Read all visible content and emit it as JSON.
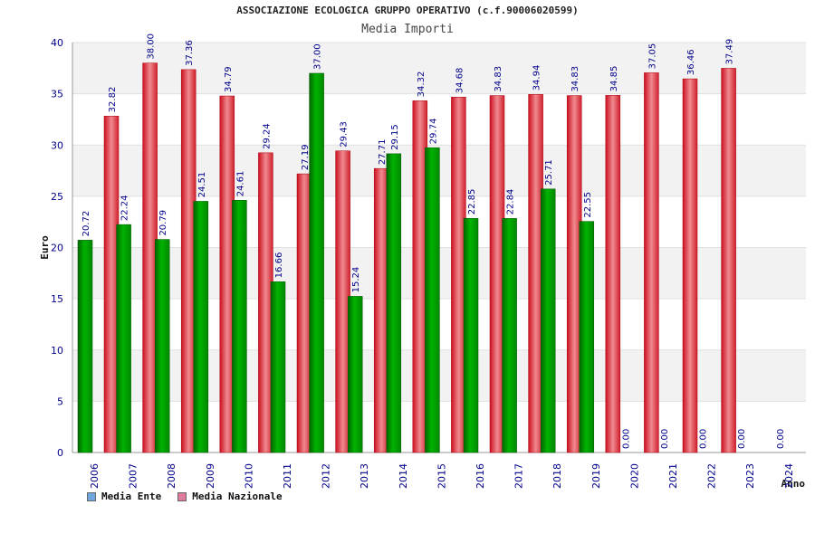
{
  "colors": {
    "ente": "#00b300",
    "nazionale": "#e8303a",
    "tick_text": "#00008b",
    "value_text": "#00008b",
    "band": "#f2f2f2",
    "legend_ente_swatch": "#6fa8dc",
    "legend_nazionale_swatch": "#e07ba0"
  },
  "chart_data": {
    "type": "bar",
    "title": "ASSOCIAZIONE ECOLOGICA GRUPPO OPERATIVO (c.f.90006020599)",
    "subtitle": "Media Importi",
    "xlabel": "Anno",
    "ylabel": "Euro",
    "ylim": [
      0,
      40
    ],
    "yticks": [
      0,
      5,
      10,
      15,
      20,
      25,
      30,
      35,
      40
    ],
    "categories": [
      "2006",
      "2007",
      "2008",
      "2009",
      "2010",
      "2011",
      "2012",
      "2013",
      "2014",
      "2015",
      "2016",
      "2017",
      "2018",
      "2019",
      "2020",
      "2021",
      "2022",
      "2023",
      "2024"
    ],
    "series": [
      {
        "name": "Media Ente",
        "values": [
          20.72,
          22.24,
          20.79,
          24.51,
          24.61,
          16.66,
          37.0,
          15.24,
          29.15,
          29.74,
          22.85,
          22.84,
          25.71,
          22.55,
          0.0,
          0.0,
          0.0,
          0.0,
          0.0
        ],
        "labels": [
          "20.72",
          "22.24",
          "20.79",
          "24.51",
          "24.61",
          "16.66",
          "37.00",
          "15.24",
          "29.15",
          "29.74",
          "22.85",
          "22.84",
          "25.71",
          "22.55",
          "0.00",
          "0.00",
          "0.00",
          "0.00",
          "0.00"
        ]
      },
      {
        "name": "Media Nazionale",
        "values": [
          32.82,
          38.0,
          37.36,
          34.79,
          29.24,
          27.19,
          29.43,
          27.71,
          34.32,
          34.68,
          34.83,
          34.94,
          34.83,
          34.85,
          37.05,
          36.46,
          37.49,
          null,
          null
        ],
        "labels": [
          "32.82",
          "38.00",
          "37.36",
          "34.79",
          "29.24",
          "27.19",
          "29.43",
          "27.71",
          "34.32",
          "34.68",
          "34.83",
          "34.94",
          "34.83",
          "34.85",
          "37.05",
          "36.46",
          "37.49",
          "",
          ""
        ]
      }
    ],
    "legend_position": "bottom-left",
    "grid": "alternating horizontal bands"
  }
}
